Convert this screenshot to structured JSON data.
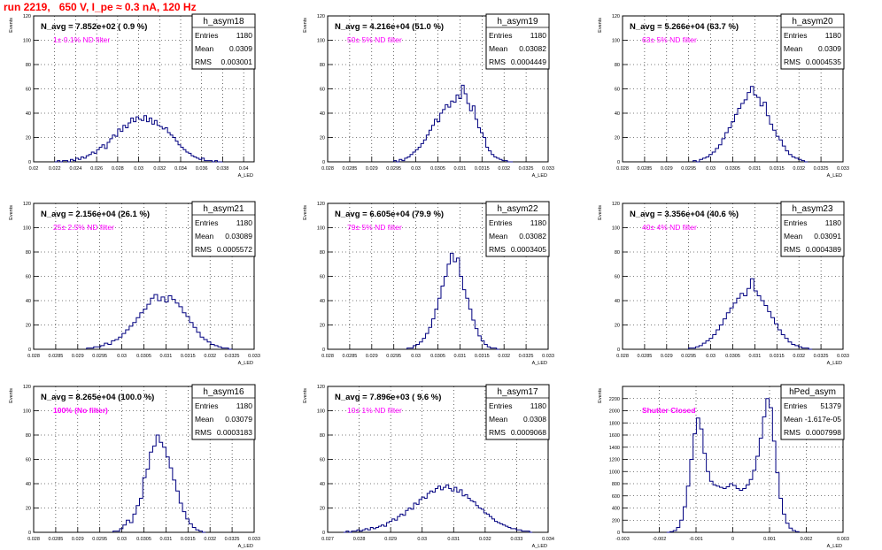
{
  "page_title": "run 2219,   650 V, I_pe ≈ 0.3 nA, 120 Hz",
  "colors": {
    "title": "#ff0000",
    "hist": "#000080",
    "annotation": "#ff00ff",
    "frame": "#000000",
    "grid": "#000000"
  },
  "axis_titles": {
    "y": "Events",
    "x": "A_LED"
  },
  "stats_labels": [
    "Entries",
    "Mean",
    "RMS"
  ],
  "chart_data": [
    {
      "type": "histogram",
      "name": "h_asym18",
      "navg_label": "N_avg = 7.852e+02 ( 0.9 %)",
      "filter_label": "1± 0.1% ND filter",
      "stats": {
        "entries": "1180",
        "mean": "0.0309",
        "rms": "0.003001"
      },
      "xlim": [
        0.02,
        0.041
      ],
      "ylim": [
        0,
        120
      ],
      "x_ticks": [
        "0.02",
        "0.022",
        "0.024",
        "0.026",
        "0.028",
        "0.03",
        "0.032",
        "0.034",
        "0.036",
        "0.038",
        "0.04"
      ],
      "x_tick_values": [
        0.02,
        0.022,
        0.024,
        0.026,
        0.028,
        0.03,
        0.032,
        0.034,
        0.036,
        0.038,
        0.04
      ],
      "y_ticks": [
        0,
        20,
        40,
        60,
        80,
        100,
        120
      ],
      "bin_range": [
        0.022,
        0.038
      ],
      "counts": [
        0,
        1,
        0,
        1,
        1,
        0,
        2,
        1,
        3,
        2,
        4,
        3,
        5,
        6,
        8,
        7,
        10,
        12,
        14,
        11,
        16,
        19,
        22,
        21,
        27,
        25,
        30,
        28,
        32,
        36,
        33,
        37,
        35,
        34,
        38,
        33,
        36,
        31,
        34,
        30,
        29,
        27,
        28,
        24,
        22,
        20,
        17,
        14,
        12,
        10,
        8,
        7,
        5,
        4,
        3,
        2,
        3,
        1,
        1,
        1,
        0,
        1,
        0,
        0
      ]
    },
    {
      "type": "histogram",
      "name": "h_asym19",
      "navg_label": "N_avg = 4.216e+04 (51.0 %)",
      "filter_label": "50± 5% ND filter",
      "stats": {
        "entries": "1180",
        "mean": "0.03082",
        "rms": "0.0004449"
      },
      "xlim": [
        0.028,
        0.033
      ],
      "ylim": [
        0,
        120
      ],
      "x_ticks": [
        "0.028",
        "0.0285",
        "0.029",
        "0.0295",
        "0.03",
        "0.0305",
        "0.031",
        "0.0315",
        "0.032",
        "0.0325",
        "0.033"
      ],
      "x_tick_values": [
        0.028,
        0.0285,
        0.029,
        0.0295,
        0.03,
        0.0305,
        0.031,
        0.0315,
        0.032,
        0.0325,
        0.033
      ],
      "y_ticks": [
        0,
        20,
        40,
        60,
        80,
        100,
        120
      ],
      "bin_range": [
        0.0295,
        0.0322
      ],
      "counts": [
        1,
        0,
        2,
        1,
        3,
        4,
        6,
        8,
        10,
        12,
        15,
        18,
        22,
        26,
        30,
        35,
        33,
        40,
        43,
        47,
        45,
        50,
        49,
        55,
        52,
        63,
        56,
        48,
        42,
        46,
        35,
        28,
        24,
        20,
        12,
        9,
        6,
        4,
        3,
        2,
        1,
        1,
        0,
        0
      ]
    },
    {
      "type": "histogram",
      "name": "h_asym20",
      "navg_label": "N_avg = 5.266e+04 (63.7 %)",
      "filter_label": "63± 5% ND filter",
      "stats": {
        "entries": "1180",
        "mean": "0.0309",
        "rms": "0.0004535"
      },
      "xlim": [
        0.028,
        0.033
      ],
      "ylim": [
        0,
        120
      ],
      "x_ticks": [
        "0.028",
        "0.0285",
        "0.029",
        "0.0295",
        "0.03",
        "0.0305",
        "0.031",
        "0.0315",
        "0.032",
        "0.0325",
        "0.033"
      ],
      "x_tick_values": [
        0.028,
        0.0285,
        0.029,
        0.0295,
        0.03,
        0.0305,
        0.031,
        0.0315,
        0.032,
        0.0325,
        0.033
      ],
      "y_ticks": [
        0,
        20,
        40,
        60,
        80,
        100,
        120
      ],
      "bin_range": [
        0.0296,
        0.0322
      ],
      "counts": [
        1,
        0,
        2,
        3,
        4,
        6,
        8,
        11,
        14,
        19,
        24,
        28,
        33,
        39,
        44,
        48,
        51,
        57,
        62,
        55,
        53,
        46,
        49,
        38,
        31,
        26,
        21,
        18,
        13,
        9,
        6,
        4,
        3,
        2,
        1,
        0
      ]
    },
    {
      "type": "histogram",
      "name": "h_asym21",
      "navg_label": "N_avg = 2.156e+04 (26.1 %)",
      "filter_label": "25± 2.5% ND filter",
      "stats": {
        "entries": "1180",
        "mean": "0.03089",
        "rms": "0.0005572"
      },
      "xlim": [
        0.028,
        0.033
      ],
      "ylim": [
        0,
        120
      ],
      "x_ticks": [
        "0.028",
        "0.0285",
        "0.029",
        "0.0295",
        "0.03",
        "0.0305",
        "0.031",
        "0.0315",
        "0.032",
        "0.0325",
        "0.033"
      ],
      "x_tick_values": [
        0.028,
        0.0285,
        0.029,
        0.0295,
        0.03,
        0.0305,
        0.031,
        0.0315,
        0.032,
        0.0325,
        0.033
      ],
      "y_ticks": [
        0,
        20,
        40,
        60,
        80,
        100,
        120
      ],
      "bin_range": [
        0.0292,
        0.0325
      ],
      "counts": [
        1,
        1,
        2,
        2,
        3,
        5,
        4,
        7,
        8,
        10,
        13,
        16,
        19,
        22,
        26,
        30,
        33,
        37,
        42,
        45,
        40,
        43,
        39,
        44,
        41,
        38,
        35,
        30,
        27,
        22,
        18,
        14,
        10,
        8,
        6,
        4,
        3,
        2,
        1,
        1,
        0
      ]
    },
    {
      "type": "histogram",
      "name": "h_asym22",
      "navg_label": "N_avg = 6.605e+04 (79.9 %)",
      "filter_label": "79± 5% ND filter",
      "stats": {
        "entries": "1180",
        "mean": "0.03082",
        "rms": "0.0003405"
      },
      "xlim": [
        0.028,
        0.033
      ],
      "ylim": [
        0,
        120
      ],
      "x_ticks": [
        "0.028",
        "0.0285",
        "0.029",
        "0.0295",
        "0.03",
        "0.0305",
        "0.031",
        "0.0315",
        "0.032",
        "0.0325",
        "0.033"
      ],
      "x_tick_values": [
        0.028,
        0.0285,
        0.029,
        0.0295,
        0.03,
        0.0305,
        0.031,
        0.0315,
        0.032,
        0.0325,
        0.033
      ],
      "y_ticks": [
        0,
        20,
        40,
        60,
        80,
        100,
        120
      ],
      "bin_range": [
        0.0298,
        0.0319
      ],
      "counts": [
        1,
        1,
        3,
        4,
        6,
        9,
        13,
        18,
        25,
        33,
        42,
        52,
        60,
        70,
        79,
        72,
        75,
        60,
        49,
        42,
        33,
        24,
        17,
        11,
        7,
        4,
        2,
        1,
        1,
        0
      ]
    },
    {
      "type": "histogram",
      "name": "h_asym23",
      "navg_label": "N_avg = 3.356e+04 (40.6 %)",
      "filter_label": "40± 4% ND filter",
      "stats": {
        "entries": "1180",
        "mean": "0.03091",
        "rms": "0.0004389"
      },
      "xlim": [
        0.028,
        0.033
      ],
      "ylim": [
        0,
        120
      ],
      "x_ticks": [
        "0.028",
        "0.0285",
        "0.029",
        "0.0295",
        "0.03",
        "0.0305",
        "0.031",
        "0.0315",
        "0.032",
        "0.0325",
        "0.033"
      ],
      "x_tick_values": [
        0.028,
        0.0285,
        0.029,
        0.0295,
        0.03,
        0.0305,
        0.031,
        0.0315,
        0.032,
        0.0325,
        0.033
      ],
      "y_ticks": [
        0,
        20,
        40,
        60,
        80,
        100,
        120
      ],
      "bin_range": [
        0.0295,
        0.0323
      ],
      "counts": [
        1,
        1,
        2,
        3,
        5,
        7,
        9,
        12,
        16,
        20,
        25,
        30,
        34,
        38,
        42,
        46,
        44,
        50,
        58,
        48,
        44,
        40,
        36,
        31,
        26,
        21,
        16,
        12,
        9,
        6,
        4,
        3,
        2,
        1,
        1,
        0
      ]
    },
    {
      "type": "histogram",
      "name": "h_asym16",
      "navg_label": "N_avg = 8.265e+04 (100.0 %)",
      "filter_label": "100% (No filter)",
      "stats": {
        "entries": "1180",
        "mean": "0.03079",
        "rms": "0.0003183"
      },
      "xlim": [
        0.028,
        0.033
      ],
      "ylim": [
        0,
        120
      ],
      "x_ticks": [
        "0.028",
        "0.0285",
        "0.029",
        "0.0295",
        "0.03",
        "0.0305",
        "0.031",
        "0.0315",
        "0.032",
        "0.0325",
        "0.033"
      ],
      "x_tick_values": [
        0.028,
        0.0285,
        0.029,
        0.0295,
        0.03,
        0.0305,
        0.031,
        0.0315,
        0.032,
        0.0325,
        0.033
      ],
      "y_ticks": [
        0,
        20,
        40,
        60,
        80,
        100,
        120
      ],
      "bin_range": [
        0.0298,
        0.0319
      ],
      "counts": [
        1,
        1,
        3,
        6,
        10,
        8,
        15,
        22,
        28,
        45,
        52,
        66,
        71,
        80,
        74,
        70,
        62,
        53,
        43,
        34,
        24,
        17,
        11,
        7,
        4,
        2,
        1,
        0
      ]
    },
    {
      "type": "histogram",
      "name": "h_asym17",
      "navg_label": "N_avg = 7.896e+03 ( 9.6 %)",
      "filter_label": "10± 1% ND filter",
      "stats": {
        "entries": "1180",
        "mean": "0.0308",
        "rms": "0.0009068"
      },
      "xlim": [
        0.027,
        0.034
      ],
      "ylim": [
        0,
        120
      ],
      "x_ticks": [
        "0.027",
        "0.028",
        "0.029",
        "0.03",
        "0.031",
        "0.032",
        "0.033",
        "0.034"
      ],
      "x_tick_values": [
        0.027,
        0.028,
        0.029,
        0.03,
        0.031,
        0.032,
        0.033,
        0.034
      ],
      "y_ticks": [
        0,
        20,
        40,
        60,
        80,
        100,
        120
      ],
      "bin_range": [
        0.0275,
        0.0335
      ],
      "counts": [
        0,
        1,
        0,
        1,
        1,
        2,
        1,
        2,
        3,
        2,
        4,
        3,
        4,
        5,
        6,
        5,
        8,
        9,
        11,
        10,
        13,
        15,
        14,
        18,
        20,
        19,
        24,
        23,
        27,
        29,
        28,
        32,
        34,
        33,
        36,
        38,
        35,
        37,
        39,
        36,
        34,
        37,
        33,
        35,
        30,
        31,
        28,
        26,
        25,
        22,
        20,
        19,
        16,
        15,
        13,
        11,
        9,
        8,
        7,
        6,
        5,
        4,
        3,
        3,
        2,
        2,
        1,
        1,
        1,
        0
      ]
    },
    {
      "type": "histogram",
      "name": "hPed_asym",
      "navg_label": "",
      "filter_label": "Shutter Closed",
      "stats": {
        "entries": "51379",
        "mean": "-1.617e-05",
        "rms": "0.0007998"
      },
      "xlim": [
        -0.003,
        0.003
      ],
      "ylim": [
        0,
        2400
      ],
      "x_ticks": [
        "-0.003",
        "-0.002",
        "-0.001",
        "0",
        "0.001",
        "0.002",
        "0.003"
      ],
      "x_tick_values": [
        -0.003,
        -0.002,
        -0.001,
        0,
        0.001,
        0.002,
        0.003
      ],
      "y_ticks": [
        0,
        200,
        400,
        600,
        800,
        1000,
        1200,
        1400,
        1600,
        1800,
        2000,
        2200
      ],
      "bin_range": [
        -0.0018,
        0.0018
      ],
      "counts": [
        0,
        10,
        30,
        80,
        200,
        420,
        760,
        1200,
        1620,
        1880,
        1700,
        1300,
        1000,
        840,
        780,
        760,
        740,
        720,
        750,
        800,
        770,
        720,
        690,
        720,
        780,
        870,
        1020,
        1250,
        1550,
        1900,
        2200,
        2050,
        1500,
        980,
        560,
        300,
        150,
        70,
        30,
        10
      ]
    }
  ]
}
